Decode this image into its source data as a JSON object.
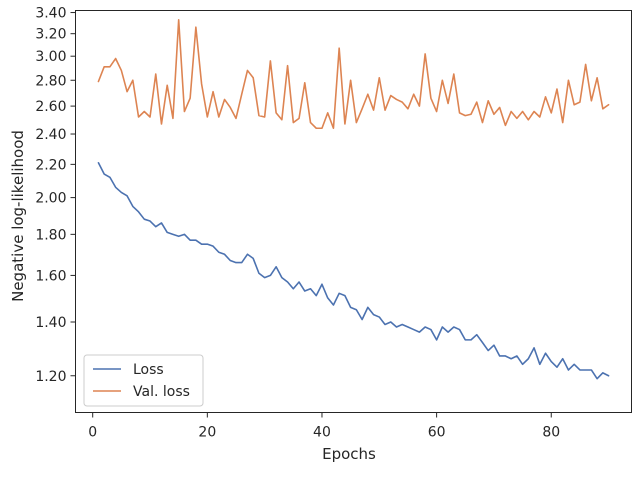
{
  "chart_data": {
    "type": "line",
    "title": "",
    "xlabel": "Epochs",
    "ylabel": "Negative log-likelihood",
    "y_scale": "log",
    "xlim": [
      -3,
      94
    ],
    "ylim": [
      1.08,
      3.42
    ],
    "grid": false,
    "legend_position": "lower-left",
    "x_ticks": [
      0,
      20,
      40,
      60,
      80
    ],
    "x_tick_labels": [
      "0",
      "20",
      "40",
      "60",
      "80"
    ],
    "y_ticks": [
      1.2,
      1.4,
      1.6,
      1.8,
      2.0,
      2.2,
      2.4,
      2.6,
      2.8,
      3.0,
      3.2,
      3.4
    ],
    "y_tick_labels": [
      "1.20",
      "1.40",
      "1.60",
      "1.80",
      "2.00",
      "2.20",
      "2.40",
      "2.60",
      "2.80",
      "3.00",
      "3.20",
      "3.40"
    ],
    "series": [
      {
        "name": "Loss",
        "color": "#4c72b0",
        "x": [
          1,
          2,
          3,
          4,
          5,
          6,
          7,
          8,
          9,
          10,
          11,
          12,
          13,
          14,
          15,
          16,
          17,
          18,
          19,
          20,
          21,
          22,
          23,
          24,
          25,
          26,
          27,
          28,
          29,
          30,
          31,
          32,
          33,
          34,
          35,
          36,
          37,
          38,
          39,
          40,
          41,
          42,
          43,
          44,
          45,
          46,
          47,
          48,
          49,
          50,
          51,
          52,
          53,
          54,
          55,
          56,
          57,
          58,
          59,
          60,
          61,
          62,
          63,
          64,
          65,
          66,
          67,
          68,
          69,
          70,
          71,
          72,
          73,
          74,
          75,
          76,
          77,
          78,
          79,
          80,
          81,
          82,
          83,
          84,
          85,
          86,
          87,
          88,
          89,
          90
        ],
        "values": [
          2.21,
          2.14,
          2.12,
          2.06,
          2.03,
          2.01,
          1.95,
          1.92,
          1.88,
          1.87,
          1.84,
          1.86,
          1.81,
          1.8,
          1.79,
          1.8,
          1.77,
          1.77,
          1.75,
          1.75,
          1.74,
          1.71,
          1.7,
          1.67,
          1.66,
          1.66,
          1.7,
          1.68,
          1.61,
          1.59,
          1.6,
          1.64,
          1.59,
          1.57,
          1.54,
          1.57,
          1.53,
          1.54,
          1.51,
          1.56,
          1.5,
          1.47,
          1.52,
          1.51,
          1.46,
          1.45,
          1.41,
          1.46,
          1.43,
          1.42,
          1.39,
          1.4,
          1.38,
          1.39,
          1.38,
          1.37,
          1.36,
          1.38,
          1.37,
          1.33,
          1.38,
          1.36,
          1.38,
          1.37,
          1.33,
          1.33,
          1.35,
          1.32,
          1.29,
          1.31,
          1.27,
          1.27,
          1.26,
          1.27,
          1.24,
          1.26,
          1.3,
          1.24,
          1.28,
          1.25,
          1.23,
          1.26,
          1.22,
          1.24,
          1.22,
          1.22,
          1.22,
          1.19,
          1.21,
          1.2
        ]
      },
      {
        "name": "Val. loss",
        "color": "#dd8452",
        "x": [
          1,
          2,
          3,
          4,
          5,
          6,
          7,
          8,
          9,
          10,
          11,
          12,
          13,
          14,
          15,
          16,
          17,
          18,
          19,
          20,
          21,
          22,
          23,
          24,
          25,
          26,
          27,
          28,
          29,
          30,
          31,
          32,
          33,
          34,
          35,
          36,
          37,
          38,
          39,
          40,
          41,
          42,
          43,
          44,
          45,
          46,
          47,
          48,
          49,
          50,
          51,
          52,
          53,
          54,
          55,
          56,
          57,
          58,
          59,
          60,
          61,
          62,
          63,
          64,
          65,
          66,
          67,
          68,
          69,
          70,
          71,
          72,
          73,
          74,
          75,
          76,
          77,
          78,
          79,
          80,
          81,
          82,
          83,
          84,
          85,
          86,
          87,
          88,
          89,
          90
        ],
        "values": [
          2.79,
          2.91,
          2.91,
          2.98,
          2.88,
          2.71,
          2.8,
          2.52,
          2.56,
          2.52,
          2.85,
          2.47,
          2.76,
          2.51,
          3.33,
          2.56,
          2.66,
          3.26,
          2.77,
          2.52,
          2.71,
          2.52,
          2.65,
          2.59,
          2.51,
          2.69,
          2.88,
          2.82,
          2.53,
          2.52,
          2.96,
          2.55,
          2.5,
          2.92,
          2.48,
          2.51,
          2.78,
          2.48,
          2.44,
          2.44,
          2.55,
          2.44,
          3.07,
          2.47,
          2.8,
          2.48,
          2.58,
          2.69,
          2.57,
          2.82,
          2.57,
          2.68,
          2.65,
          2.63,
          2.58,
          2.69,
          2.6,
          3.02,
          2.66,
          2.56,
          2.8,
          2.62,
          2.85,
          2.55,
          2.53,
          2.54,
          2.63,
          2.48,
          2.64,
          2.54,
          2.59,
          2.46,
          2.56,
          2.51,
          2.56,
          2.5,
          2.56,
          2.52,
          2.67,
          2.55,
          2.73,
          2.48,
          2.8,
          2.61,
          2.63,
          2.93,
          2.64,
          2.82,
          2.58,
          2.61
        ]
      }
    ]
  }
}
